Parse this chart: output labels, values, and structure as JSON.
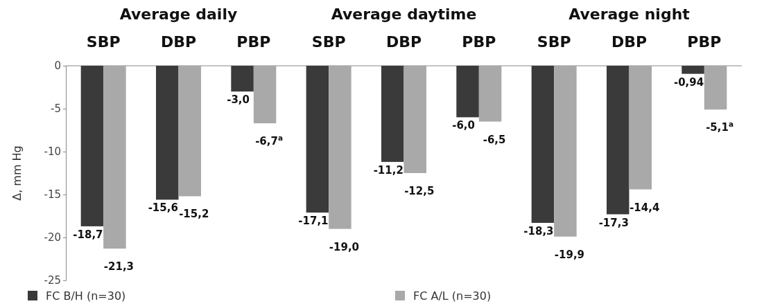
{
  "chart_data": {
    "type": "bar",
    "ylabel": "Δ,  mm Hg",
    "categories": [
      "SBP",
      "DBP",
      "PBP",
      "SBP",
      "DBP",
      "PBP",
      "SBP",
      "DBP",
      "PBP"
    ],
    "annotations": [
      "Average daily",
      "Average daytime",
      "Average night"
    ],
    "series": [
      {
        "name": "FC B/H (n=30)",
        "color": "#3a3a3a",
        "values": [
          -18.7,
          -15.6,
          -3.0,
          -17.1,
          -11.2,
          -6.0,
          -18.3,
          -17.3,
          -0.94
        ],
        "value_labels": [
          "-18,7",
          "-15,6",
          "-3,0",
          "-17,1",
          "-11,2",
          "-6,0",
          "-18,3",
          "-17,3",
          "-0,94"
        ]
      },
      {
        "name": "FC A/L (n=30)",
        "color": "#a9a9a9",
        "values": [
          -21.3,
          -15.2,
          -6.7,
          -19.0,
          -12.5,
          -6.5,
          -19.9,
          -14.4,
          -5.1
        ],
        "value_labels": [
          "-21,3",
          "-15,2",
          "-6,7$^{a}$",
          "-19,0",
          "-12,5",
          "-6,5",
          "-19,9",
          "-14,4",
          "-5,1$^{a}$"
        ]
      }
    ],
    "ylim": [
      -25,
      0
    ],
    "yticks": [
      -25,
      -20,
      -15,
      -10,
      -5,
      0
    ],
    "grid": false,
    "legend": "bottom"
  }
}
